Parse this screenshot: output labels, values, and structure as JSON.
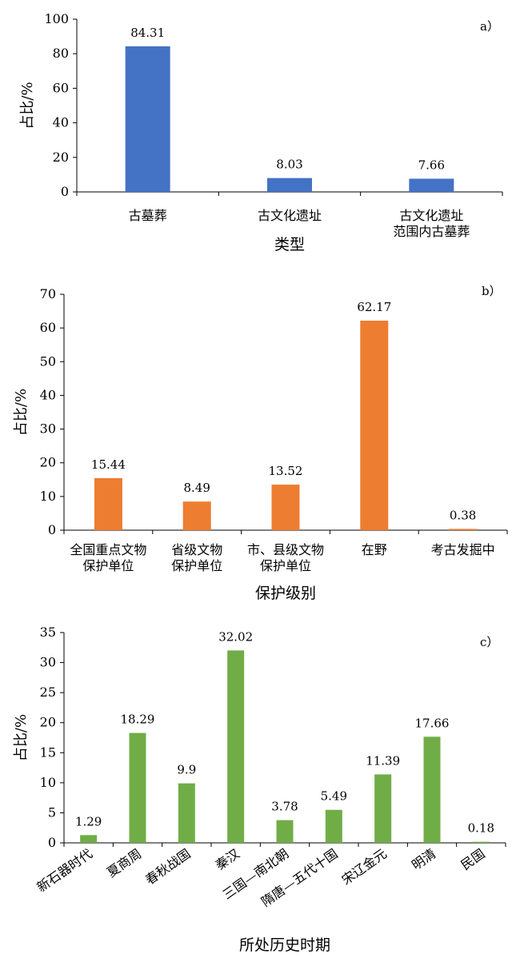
{
  "chart_data": [
    {
      "panel_label": "a）",
      "type": "bar",
      "categories": [
        [
          "古墓葬"
        ],
        [
          "古文化遗址"
        ],
        [
          "古文化遗址",
          "范围内古墓葬"
        ]
      ],
      "values": [
        84.31,
        8.03,
        7.66
      ],
      "value_labels": [
        "84.31",
        "8.03",
        "7.66"
      ],
      "ylabel": "占比/%",
      "xlabel": "类型",
      "ylim": [
        0,
        100
      ],
      "yticks": [
        0,
        20,
        40,
        60,
        80,
        100
      ],
      "color": "#4472C4"
    },
    {
      "panel_label": "b）",
      "type": "bar",
      "categories": [
        [
          "全国重点文物",
          "保护单位"
        ],
        [
          "省级文物",
          "保护单位"
        ],
        [
          "市、县级文物",
          "保护单位"
        ],
        [
          "在野"
        ],
        [
          "考古发掘中"
        ]
      ],
      "values": [
        15.44,
        8.49,
        13.52,
        62.17,
        0.38
      ],
      "value_labels": [
        "15.44",
        "8.49",
        "13.52",
        "62.17",
        "0.38"
      ],
      "ylabel": "占比/%",
      "xlabel": "保护级别",
      "ylim": [
        0,
        70
      ],
      "yticks": [
        0,
        10,
        20,
        30,
        40,
        50,
        60,
        70
      ],
      "color": "#ED7D31"
    },
    {
      "panel_label": "c）",
      "type": "bar",
      "categories": [
        [
          "新石器时代"
        ],
        [
          "夏商周"
        ],
        [
          "春秋战国"
        ],
        [
          "秦汉"
        ],
        [
          "三国—南北朝"
        ],
        [
          "隋唐—五代十国"
        ],
        [
          "宋辽金元"
        ],
        [
          "明清"
        ],
        [
          "民国"
        ]
      ],
      "values": [
        1.29,
        18.29,
        9.9,
        32.02,
        3.78,
        5.49,
        11.39,
        17.66,
        0.18
      ],
      "value_labels": [
        "1.29",
        "18.29",
        "9.9",
        "32.02",
        "3.78",
        "5.49",
        "11.39",
        "17.66",
        "0.18"
      ],
      "ylabel": "占比/%",
      "xlabel": "所处历史时期",
      "ylim": [
        0,
        35
      ],
      "yticks": [
        0,
        5,
        10,
        15,
        20,
        25,
        30,
        35
      ],
      "color": "#70AD47"
    }
  ]
}
